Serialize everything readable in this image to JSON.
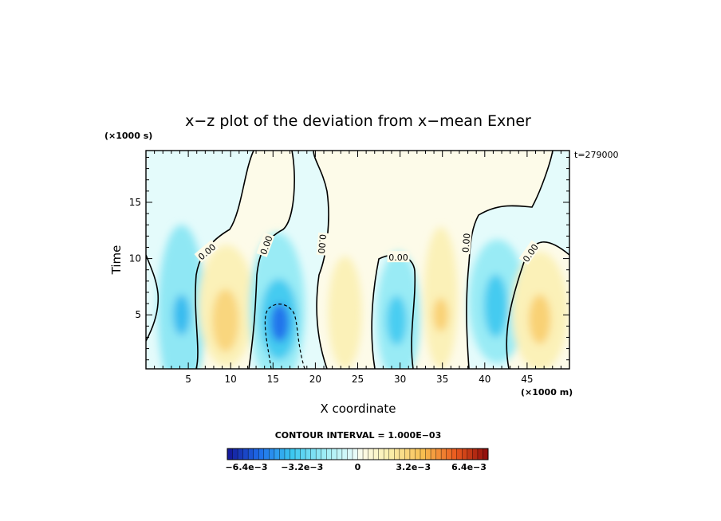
{
  "chart_data": {
    "type": "heatmap",
    "title": "x−z plot of the deviation from x−mean Exner",
    "xlabel": "X coordinate",
    "ylabel": "Time",
    "x_unit_label": "(×1000 m)",
    "y_unit_label": "(×1000 s)",
    "time_label": "t=279000",
    "xlim": [
      0,
      50
    ],
    "ylim": [
      0.2,
      19.6
    ],
    "x_ticks": [
      5,
      10,
      15,
      20,
      25,
      30,
      35,
      40,
      45
    ],
    "y_ticks": [
      5,
      10,
      15
    ],
    "contour_interval_text": "CONTOUR INTERVAL = 1.000E−03",
    "contour_labels": [
      {
        "text": "0.00",
        "x": 7.2,
        "y": 10.6,
        "angle": -40
      },
      {
        "text": "0.00",
        "x": 14.2,
        "y": 11.2,
        "angle": -70
      },
      {
        "text": "0.00",
        "x": 20.8,
        "y": 11.3,
        "angle": 95
      },
      {
        "text": "0.00",
        "x": 29.8,
        "y": 10.1,
        "angle": 0
      },
      {
        "text": "0.00",
        "x": 37.8,
        "y": 11.4,
        "angle": -85
      },
      {
        "text": "0.00",
        "x": 45.4,
        "y": 10.5,
        "angle": -55
      }
    ],
    "blobs": [
      {
        "x": 4.2,
        "y": 5.2,
        "rx": 2.8,
        "ry": 7.8,
        "value": -0.0022
      },
      {
        "x": 4.2,
        "y": 5.0,
        "rx": 1.0,
        "ry": 1.8,
        "value": -0.004
      },
      {
        "x": 9.5,
        "y": 5.8,
        "rx": 3.3,
        "ry": 5.4,
        "value": 0.0015
      },
      {
        "x": 9.4,
        "y": 4.5,
        "rx": 1.6,
        "ry": 2.8,
        "value": 0.0028
      },
      {
        "x": 15.5,
        "y": 5.5,
        "rx": 3.3,
        "ry": 6.8,
        "value": -0.002
      },
      {
        "x": 15.7,
        "y": 4.6,
        "rx": 2.2,
        "ry": 3.6,
        "value": -0.0036
      },
      {
        "x": 15.8,
        "y": 4.3,
        "rx": 1.1,
        "ry": 1.7,
        "value": -0.0055
      },
      {
        "x": 23.5,
        "y": 5.2,
        "rx": 2.0,
        "ry": 5.0,
        "value": 0.0015
      },
      {
        "x": 29.8,
        "y": 4.8,
        "rx": 2.6,
        "ry": 5.8,
        "value": -0.002
      },
      {
        "x": 29.6,
        "y": 4.5,
        "rx": 1.2,
        "ry": 2.2,
        "value": -0.0035
      },
      {
        "x": 34.8,
        "y": 6.5,
        "rx": 2.0,
        "ry": 6.3,
        "value": 0.0015
      },
      {
        "x": 34.8,
        "y": 5.0,
        "rx": 0.9,
        "ry": 1.5,
        "value": 0.003
      },
      {
        "x": 41.5,
        "y": 6.2,
        "rx": 3.4,
        "ry": 5.5,
        "value": -0.002
      },
      {
        "x": 41.3,
        "y": 5.8,
        "rx": 1.4,
        "ry": 2.8,
        "value": -0.0036
      },
      {
        "x": 46.5,
        "y": 5.3,
        "rx": 3.3,
        "ry": 5.3,
        "value": 0.0015
      },
      {
        "x": 46.5,
        "y": 4.6,
        "rx": 1.3,
        "ry": 2.2,
        "value": 0.003
      }
    ],
    "colorbar": {
      "min": -0.0075,
      "max": 0.0075,
      "step": 0.0003,
      "tick_labels": [
        {
          "text": "−6.4e−3",
          "value": -0.0064
        },
        {
          "text": "−3.2e−3",
          "value": -0.0032
        },
        {
          "text": "0",
          "value": 0
        },
        {
          "text": "3.2e−3",
          "value": 0.0032
        },
        {
          "text": "6.4e−3",
          "value": 0.0064
        }
      ]
    },
    "grid": false,
    "legend": "colorbar-bottom"
  },
  "colors": {
    "background": "#ffffff",
    "zero_band_positive": "#fdfbe9",
    "zero_band_negative": "#e4fbfb",
    "line": "#000000"
  }
}
